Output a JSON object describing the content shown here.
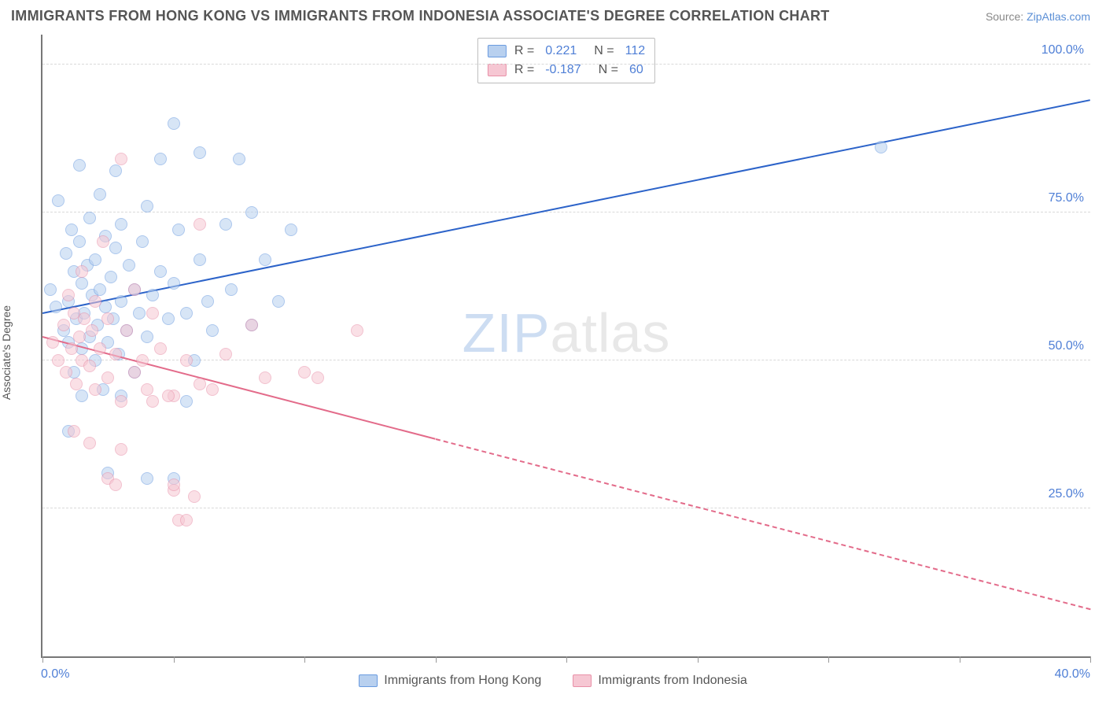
{
  "title": "IMMIGRANTS FROM HONG KONG VS IMMIGRANTS FROM INDONESIA ASSOCIATE'S DEGREE CORRELATION CHART",
  "source_label": "Source: ",
  "source_name": "ZipAtlas.com",
  "y_axis_label": "Associate's Degree",
  "watermark_a": "ZIP",
  "watermark_b": "atlas",
  "chart": {
    "type": "scatter",
    "xlim": [
      0,
      40
    ],
    "ylim": [
      0,
      105
    ],
    "x_ticks": [
      0,
      5,
      10,
      15,
      20,
      25,
      30,
      35,
      40
    ],
    "x_tick_labels": {
      "0": "0.0%",
      "40": "40.0%"
    },
    "y_grid": [
      25,
      50,
      75,
      100
    ],
    "y_tick_labels": {
      "25": "25.0%",
      "50": "50.0%",
      "75": "75.0%",
      "100": "100.0%"
    },
    "background_color": "#ffffff",
    "grid_color": "#d9d9d9",
    "axis_color": "#777777",
    "tick_label_color": "#4f7fd6",
    "point_radius": 8,
    "point_opacity": 0.55
  },
  "legend_stats": [
    {
      "swatch_fill": "#b8d0ef",
      "swatch_border": "#6a9be0",
      "r_label": "R =",
      "r": "0.221",
      "n_label": "N =",
      "n": "112"
    },
    {
      "swatch_fill": "#f6c7d3",
      "swatch_border": "#e890a8",
      "r_label": "R =",
      "r": "-0.187",
      "n_label": "N =",
      "n": "60"
    }
  ],
  "bottom_legend": [
    {
      "swatch_fill": "#b8d0ef",
      "swatch_border": "#6a9be0",
      "label": "Immigrants from Hong Kong"
    },
    {
      "swatch_fill": "#f6c7d3",
      "swatch_border": "#e890a8",
      "label": "Immigrants from Indonesia"
    }
  ],
  "series": [
    {
      "name": "Immigrants from Hong Kong",
      "fill": "#b8d0ef",
      "border": "#6a9be0",
      "trend_color": "#2c63c9",
      "trend": {
        "x1": 0,
        "y1": 58,
        "x2": 40,
        "y2": 94,
        "dash_from_x": null
      },
      "points": [
        [
          0.3,
          62
        ],
        [
          0.5,
          59
        ],
        [
          0.6,
          77
        ],
        [
          0.8,
          55
        ],
        [
          0.9,
          68
        ],
        [
          1.0,
          53
        ],
        [
          1.0,
          60
        ],
        [
          1.1,
          72
        ],
        [
          1.2,
          48
        ],
        [
          1.2,
          65
        ],
        [
          1.3,
          57
        ],
        [
          1.4,
          70
        ],
        [
          1.4,
          83
        ],
        [
          1.5,
          52
        ],
        [
          1.5,
          63
        ],
        [
          1.6,
          58
        ],
        [
          1.7,
          66
        ],
        [
          1.8,
          54
        ],
        [
          1.8,
          74
        ],
        [
          1.9,
          61
        ],
        [
          2.0,
          50
        ],
        [
          2.0,
          67
        ],
        [
          2.1,
          56
        ],
        [
          2.2,
          62
        ],
        [
          2.2,
          78
        ],
        [
          2.3,
          45
        ],
        [
          2.4,
          59
        ],
        [
          2.4,
          71
        ],
        [
          2.5,
          53
        ],
        [
          2.6,
          64
        ],
        [
          2.7,
          57
        ],
        [
          2.8,
          69
        ],
        [
          2.8,
          82
        ],
        [
          2.9,
          51
        ],
        [
          3.0,
          60
        ],
        [
          3.0,
          73
        ],
        [
          3.2,
          55
        ],
        [
          3.3,
          66
        ],
        [
          3.5,
          48
        ],
        [
          3.5,
          62
        ],
        [
          3.7,
          58
        ],
        [
          3.8,
          70
        ],
        [
          4.0,
          54
        ],
        [
          4.0,
          76
        ],
        [
          4.2,
          61
        ],
        [
          4.5,
          65
        ],
        [
          4.5,
          84
        ],
        [
          4.8,
          57
        ],
        [
          5.0,
          63
        ],
        [
          5.0,
          90
        ],
        [
          5.2,
          72
        ],
        [
          5.5,
          58
        ],
        [
          5.8,
          50
        ],
        [
          6.0,
          67
        ],
        [
          6.0,
          85
        ],
        [
          6.3,
          60
        ],
        [
          6.5,
          55
        ],
        [
          7.0,
          73
        ],
        [
          7.2,
          62
        ],
        [
          7.5,
          84
        ],
        [
          8.0,
          56
        ],
        [
          8.0,
          75
        ],
        [
          8.5,
          67
        ],
        [
          9.0,
          60
        ],
        [
          9.5,
          72
        ],
        [
          3.0,
          44
        ],
        [
          1.5,
          44
        ],
        [
          4.0,
          30
        ],
        [
          2.5,
          31
        ],
        [
          1.0,
          38
        ],
        [
          5.0,
          30
        ],
        [
          5.5,
          43
        ],
        [
          32.0,
          86
        ]
      ]
    },
    {
      "name": "Immigrants from Indonesia",
      "fill": "#f6c7d3",
      "border": "#e890a8",
      "trend_color": "#e36b8a",
      "trend": {
        "x1": 0,
        "y1": 54,
        "x2": 40,
        "y2": 8,
        "dash_from_x": 15
      },
      "points": [
        [
          0.4,
          53
        ],
        [
          0.6,
          50
        ],
        [
          0.8,
          56
        ],
        [
          0.9,
          48
        ],
        [
          1.0,
          61
        ],
        [
          1.1,
          52
        ],
        [
          1.2,
          58
        ],
        [
          1.3,
          46
        ],
        [
          1.4,
          54
        ],
        [
          1.5,
          50
        ],
        [
          1.5,
          65
        ],
        [
          1.6,
          57
        ],
        [
          1.8,
          49
        ],
        [
          1.9,
          55
        ],
        [
          2.0,
          45
        ],
        [
          2.0,
          60
        ],
        [
          2.2,
          52
        ],
        [
          2.3,
          70
        ],
        [
          2.5,
          47
        ],
        [
          2.5,
          57
        ],
        [
          2.8,
          51
        ],
        [
          3.0,
          43
        ],
        [
          3.0,
          84
        ],
        [
          3.2,
          55
        ],
        [
          3.5,
          48
        ],
        [
          3.5,
          62
        ],
        [
          3.8,
          50
        ],
        [
          4.0,
          45
        ],
        [
          4.2,
          58
        ],
        [
          4.5,
          52
        ],
        [
          5.0,
          44
        ],
        [
          5.5,
          50
        ],
        [
          6.0,
          73
        ],
        [
          6.5,
          45
        ],
        [
          7.0,
          51
        ],
        [
          8.0,
          56
        ],
        [
          8.5,
          47
        ],
        [
          10.0,
          48
        ],
        [
          10.5,
          47
        ],
        [
          12.0,
          55
        ],
        [
          1.2,
          38
        ],
        [
          1.8,
          36
        ],
        [
          2.5,
          30
        ],
        [
          2.8,
          29
        ],
        [
          3.0,
          35
        ],
        [
          5.0,
          28
        ],
        [
          5.2,
          23
        ],
        [
          5.0,
          29
        ],
        [
          5.5,
          23
        ],
        [
          5.8,
          27
        ],
        [
          4.2,
          43
        ],
        [
          4.8,
          44
        ],
        [
          6.0,
          46
        ]
      ]
    }
  ]
}
